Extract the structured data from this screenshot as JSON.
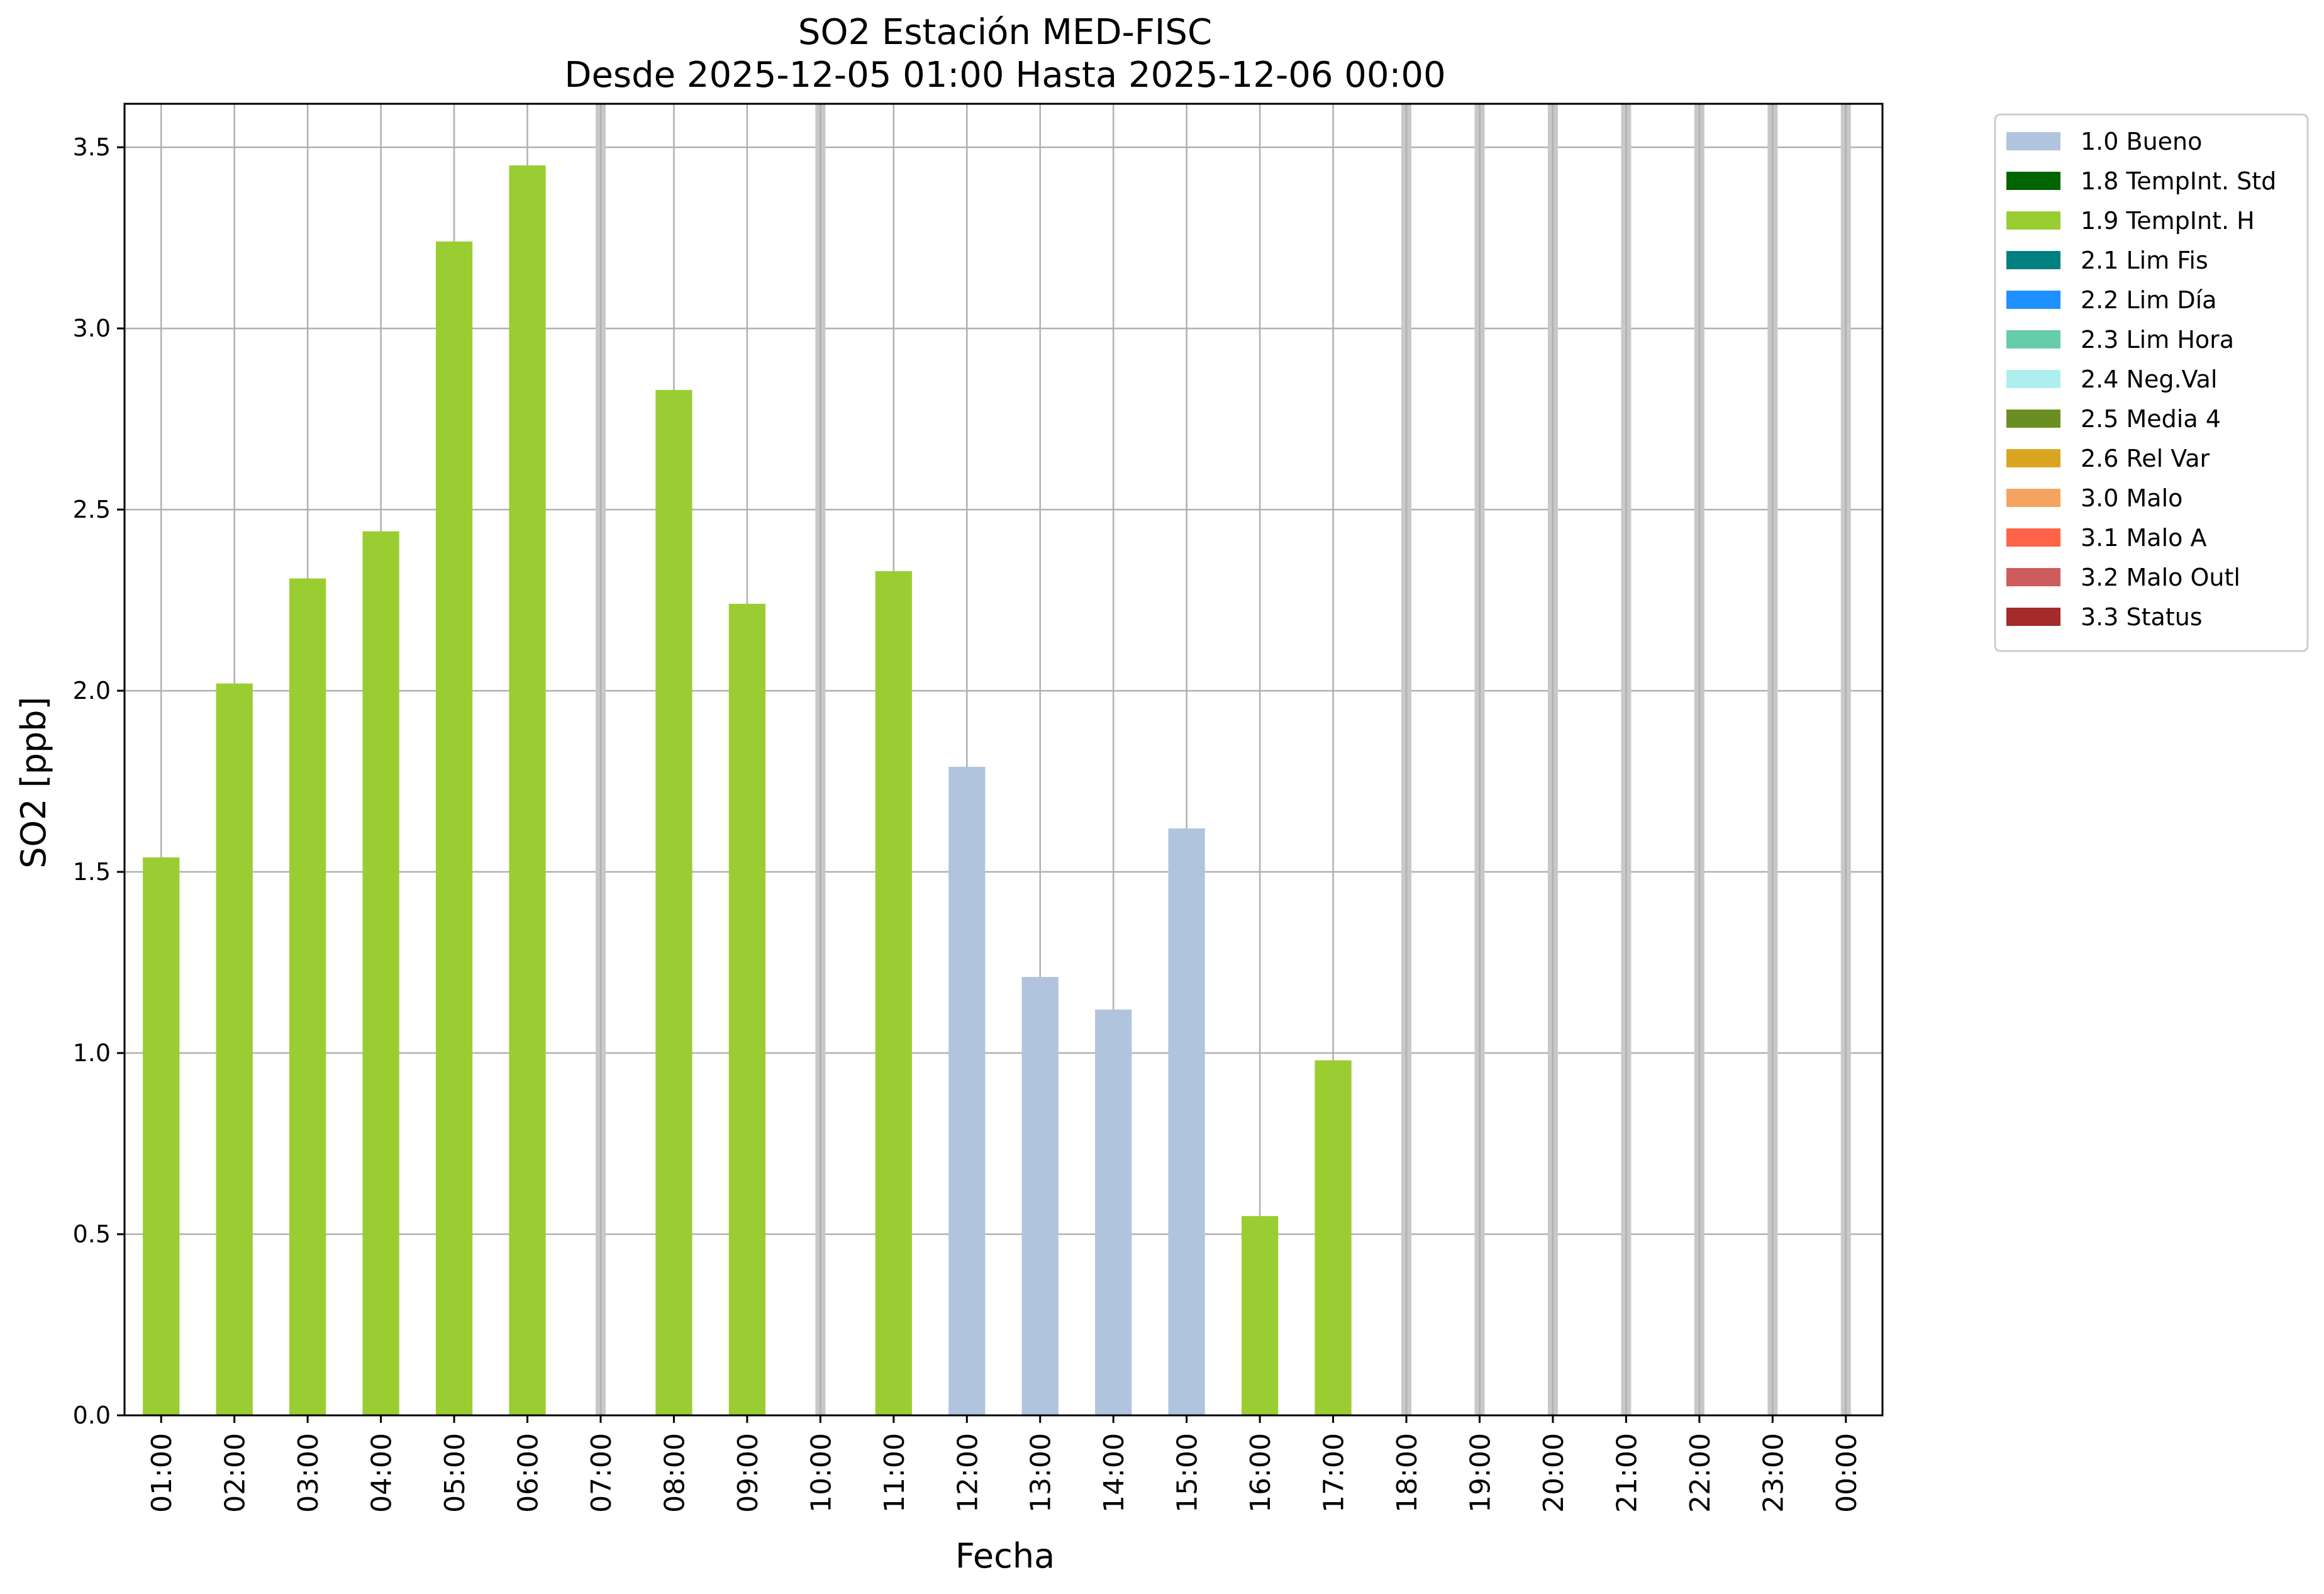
{
  "chart_data": {
    "type": "bar",
    "title": "SO2 Estación MED-FISC",
    "subtitle": "Desde 2025-12-05 01:00 Hasta 2025-12-06 00:00",
    "xlabel": "Fecha",
    "ylabel": "SO2 [ppb]",
    "ylim": [
      0,
      3.62
    ],
    "yticks": [
      0.0,
      0.5,
      1.0,
      1.5,
      2.0,
      2.5,
      3.0,
      3.5
    ],
    "ytick_labels": [
      "0.0",
      "0.5",
      "1.0",
      "1.5",
      "2.0",
      "2.5",
      "3.0",
      "3.5"
    ],
    "grid": true,
    "legend_position": "outside-right",
    "categories": [
      "01:00",
      "02:00",
      "03:00",
      "04:00",
      "05:00",
      "06:00",
      "07:00",
      "08:00",
      "09:00",
      "10:00",
      "11:00",
      "12:00",
      "13:00",
      "14:00",
      "15:00",
      "16:00",
      "17:00",
      "18:00",
      "19:00",
      "20:00",
      "21:00",
      "22:00",
      "23:00",
      "00:00"
    ],
    "values": [
      1.54,
      2.02,
      2.31,
      2.44,
      3.24,
      3.45,
      null,
      2.83,
      2.24,
      null,
      2.33,
      1.79,
      1.21,
      1.12,
      1.62,
      0.55,
      0.98,
      null,
      null,
      null,
      null,
      null,
      null,
      null
    ],
    "flags": [
      "1.9",
      "1.9",
      "1.9",
      "1.9",
      "1.9",
      "1.9",
      null,
      "1.9",
      "1.9",
      null,
      "1.9",
      "1.0",
      "1.0",
      "1.0",
      "1.0",
      "1.9",
      "1.9",
      null,
      null,
      null,
      null,
      null,
      null,
      null
    ],
    "missing_marker_color": "#c8c8c8",
    "legend": [
      {
        "key": "1.0",
        "label": "1.0 Bueno",
        "color": "#b0c4de"
      },
      {
        "key": "1.8",
        "label": "1.8 TempInt. Std",
        "color": "#006400"
      },
      {
        "key": "1.9",
        "label": "1.9 TempInt. H",
        "color": "#9acd32"
      },
      {
        "key": "2.1",
        "label": "2.1 Lim Fis",
        "color": "#008080"
      },
      {
        "key": "2.2",
        "label": "2.2 Lim Día",
        "color": "#1e90ff"
      },
      {
        "key": "2.3",
        "label": "2.3 Lim Hora",
        "color": "#66cdaa"
      },
      {
        "key": "2.4",
        "label": "2.4 Neg.Val",
        "color": "#afeeee"
      },
      {
        "key": "2.5",
        "label": "2.5 Media 4",
        "color": "#6b8e23"
      },
      {
        "key": "2.6",
        "label": "2.6 Rel Var",
        "color": "#daa520"
      },
      {
        "key": "3.0",
        "label": "3.0 Malo",
        "color": "#f4a460"
      },
      {
        "key": "3.1",
        "label": "3.1 Malo A",
        "color": "#ff6347"
      },
      {
        "key": "3.2",
        "label": "3.2 Malo Outl",
        "color": "#cd5c5c"
      },
      {
        "key": "3.3",
        "label": "3.3 Status",
        "color": "#a52a2a"
      }
    ]
  }
}
